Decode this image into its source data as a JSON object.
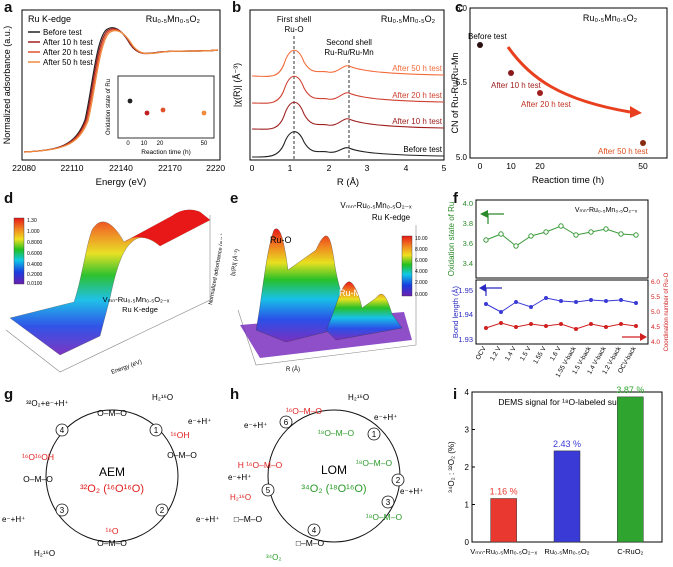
{
  "figure": {
    "panel_labels": [
      "a",
      "b",
      "c",
      "d",
      "e",
      "f",
      "g",
      "h",
      "i"
    ]
  },
  "panel_a": {
    "inset_label": "Ru K-edge",
    "formula": "Ru₀.₅Mn₀.₅O₂",
    "ylabel": "Normalized adsorbance (a.u.)",
    "xlabel": "Energy (eV)",
    "x_ticks": [
      "22080",
      "22110",
      "22140",
      "22170",
      "22200"
    ],
    "legend": [
      "Before test",
      "After 10 h test",
      "After 20 h test",
      "After 50 h test"
    ],
    "inset": {
      "ylabel": "Oxidation state of Ru",
      "xlabel": "Reaction time (h)",
      "x_ticks": [
        "0",
        "10",
        "20",
        "50"
      ],
      "y_ticks": [
        "3.0",
        "3.2",
        "3.4",
        "3.6",
        "3.8"
      ]
    }
  },
  "panel_b": {
    "formula": "Ru₀.₅Mn₀.₅O₂",
    "ylabel": "|χ(R)| (Å⁻³)",
    "xlabel": "R (Å)",
    "x_ticks": [
      "0",
      "1",
      "2",
      "3",
      "4",
      "5"
    ],
    "annotations": [
      "First shell",
      "Ru-O",
      "Second shell",
      "Ru-Ru/Ru-Mn"
    ],
    "curves": [
      "After 50 h test",
      "After 20 h test",
      "After 10 h test",
      "Before test"
    ]
  },
  "panel_c": {
    "formula": "Ru₀.₅Mn₀.₅O₂",
    "ylabel": "CN of Ru-Ru/Ru-Mn",
    "xlabel": "Reaction time  (h)",
    "x_ticks": [
      "0",
      "10",
      "20",
      "50"
    ],
    "y_ticks": [
      "5.0",
      "5.5",
      "6.0"
    ],
    "points": [
      "Before test",
      "After 10 h test",
      "After 20 h test",
      "After 50 h test"
    ]
  },
  "panel_d": {
    "colorbar_ticks": [
      "1.30",
      "1.000",
      "0.8000",
      "0.6000",
      "0.4000",
      "0.2000",
      "0.0100"
    ],
    "label_line1": "Vₘₙ-Ru₀.₅Mn₀.₅O₂₋ₓ",
    "label_line2": "Ru K-edge",
    "zlabel": "Normalized adsorbance (a.u.)",
    "xlabel": "Energy (eV)"
  },
  "panel_e": {
    "label_line1": "Vₘₙ-Ru₀.₅Mn₀.₅O₂₋ₓ",
    "label_line2": "Ru K-edge",
    "colorbar_ticks": [
      "10.00",
      "8.000",
      "6.000",
      "4.000",
      "2.000",
      "0.000"
    ],
    "peak_labels": [
      "Ru-O",
      "Ru-M"
    ],
    "xlabel": "R (Å)",
    "zlabel": "|χ(R)| (Å⁻³)"
  },
  "panel_f": {
    "title": "Vₘₙ-Ru₀.₅Mn₀.₅O₂₋ₓ",
    "top_ylabel": "Oxidation state of Ru",
    "top_y_ticks": [
      "4.0",
      "3.8",
      "3.6",
      "3.4"
    ],
    "bottom_left_ylabel": "Bond length (Å)",
    "bottom_left_ticks": [
      "1.95",
      "1.94",
      "1.93"
    ],
    "bottom_right_ylabel": "Coordination number of Ru-O",
    "bottom_right_ticks": [
      "6.0",
      "5.5",
      "5.0",
      "4.5",
      "4.0"
    ],
    "x_ticks": [
      "OCV",
      "1.2 V",
      "1.4 V",
      "1.5 V",
      "1.55 V",
      "1.6 V",
      "1.55 V-back",
      "1.5 V-back",
      "1.4 V-back",
      "1.2 V-back",
      "OCV-back"
    ]
  },
  "panel_g": {
    "center_title": "AEM",
    "center_product": "³²O₂ (¹⁶O¹⁶O)",
    "steps": [
      "1",
      "2",
      "3",
      "4"
    ],
    "species": [
      "O–M–O",
      "¹⁶OH",
      "O–M–O",
      "¹⁶O",
      "O–M–O",
      "¹⁶O¹⁶OH",
      "O–M–O"
    ],
    "reactants": [
      "H₂¹⁶O",
      "e⁻+H⁺",
      "e⁻+H⁺",
      "H₂¹⁶O",
      "e⁻+H⁺",
      "³²O₂+e⁻+H⁺"
    ]
  },
  "panel_h": {
    "center_title": "LOM",
    "center_product": "³⁴O₂ (¹⁸O¹⁶O)",
    "steps": [
      "1",
      "2",
      "3",
      "4",
      "5",
      "6"
    ],
    "species": [
      "¹⁶O–M–O",
      "¹⁸O–M–O",
      "¹⁸O–M–O",
      "¹⁸O–M–O",
      "□–M–O",
      "□–M–O",
      "H ¹⁶O–M–O"
    ],
    "reactants": [
      "H₂¹⁶O",
      "e⁻+H⁺",
      "e⁻+H⁺",
      "e⁻+H⁺",
      "H₂¹⁶O",
      "e⁻+H⁺",
      "³⁴O₂"
    ]
  },
  "panel_i": {
    "title": "DEMS signal for ¹⁸O-labeled surface",
    "ylabel": "³⁴O₂ : ³²O₂ (%)",
    "y_ticks": [
      "0",
      "1",
      "2",
      "3",
      "4"
    ],
    "chart_data": {
      "type": "bar",
      "title": "DEMS signal for 18O-labeled surface",
      "categories": [
        "VMn-Ru0.5Mn0.5O2-x",
        "Ru0.5Mn0.5O2",
        "C-RuO2"
      ],
      "category_labels": [
        "Vₘₙ-Ru₀.₅Mn₀.₅O₂₋ₓ",
        "Ru₀.₅Mn₀.₅O₂",
        "C-RuO₂"
      ],
      "values": [
        1.16,
        2.43,
        3.87
      ],
      "value_labels": [
        "1.16 %",
        "2.43 %",
        "3.87 %"
      ],
      "colors": [
        "#e8382f",
        "#3a3ad6",
        "#2fa52f"
      ],
      "ylabel": "34O2 : 32O2 (%)",
      "ylim": [
        0,
        4
      ]
    }
  }
}
